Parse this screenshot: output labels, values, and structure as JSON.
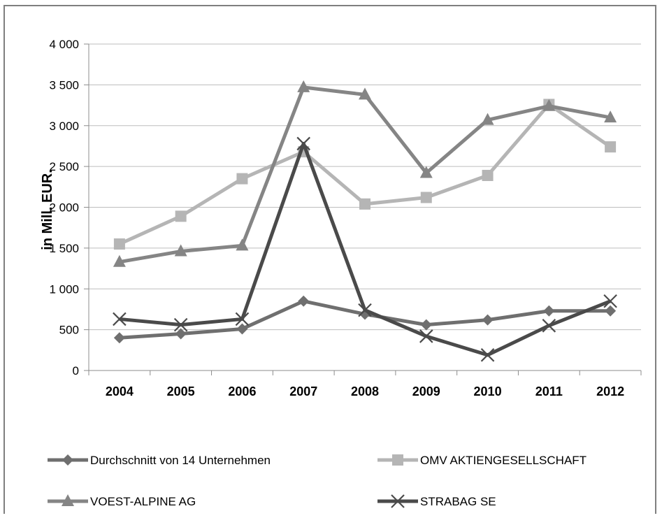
{
  "chart_data": {
    "type": "line",
    "title": "",
    "xlabel": "",
    "ylabel": "in Mill. EUR.",
    "ylim": [
      0,
      4000
    ],
    "yticks": [
      0,
      500,
      1000,
      1500,
      2000,
      2500,
      3000,
      3500,
      4000
    ],
    "ytick_labels": [
      "0",
      "500",
      "1 000",
      "1 500",
      "2 000",
      "2 500",
      "3 000",
      "3 500",
      "4 000"
    ],
    "grid": true,
    "legend_position": "bottom",
    "categories": [
      "2004",
      "2005",
      "2006",
      "2007",
      "2008",
      "2009",
      "2010",
      "2011",
      "2012"
    ],
    "series": [
      {
        "name": "Durchschnitt von 14 Unternehmen",
        "marker": "diamond",
        "color": "#6f6f6f",
        "values": [
          400,
          450,
          510,
          850,
          690,
          560,
          620,
          730,
          730
        ]
      },
      {
        "name": "OMV AKTIENGESELLSCHAFT",
        "marker": "square",
        "color": "#b5b5b5",
        "values": [
          1550,
          1890,
          2350,
          2680,
          2040,
          2120,
          2390,
          3260,
          2740
        ]
      },
      {
        "name": "VOEST-ALPINE AG",
        "marker": "triangle",
        "color": "#858585",
        "values": [
          1330,
          1460,
          1530,
          3470,
          3380,
          2420,
          3070,
          3240,
          3100
        ]
      },
      {
        "name": "STRABAG SE",
        "marker": "x",
        "color": "#4a4a4a",
        "values": [
          630,
          560,
          630,
          2780,
          740,
          420,
          190,
          550,
          850
        ]
      }
    ]
  }
}
